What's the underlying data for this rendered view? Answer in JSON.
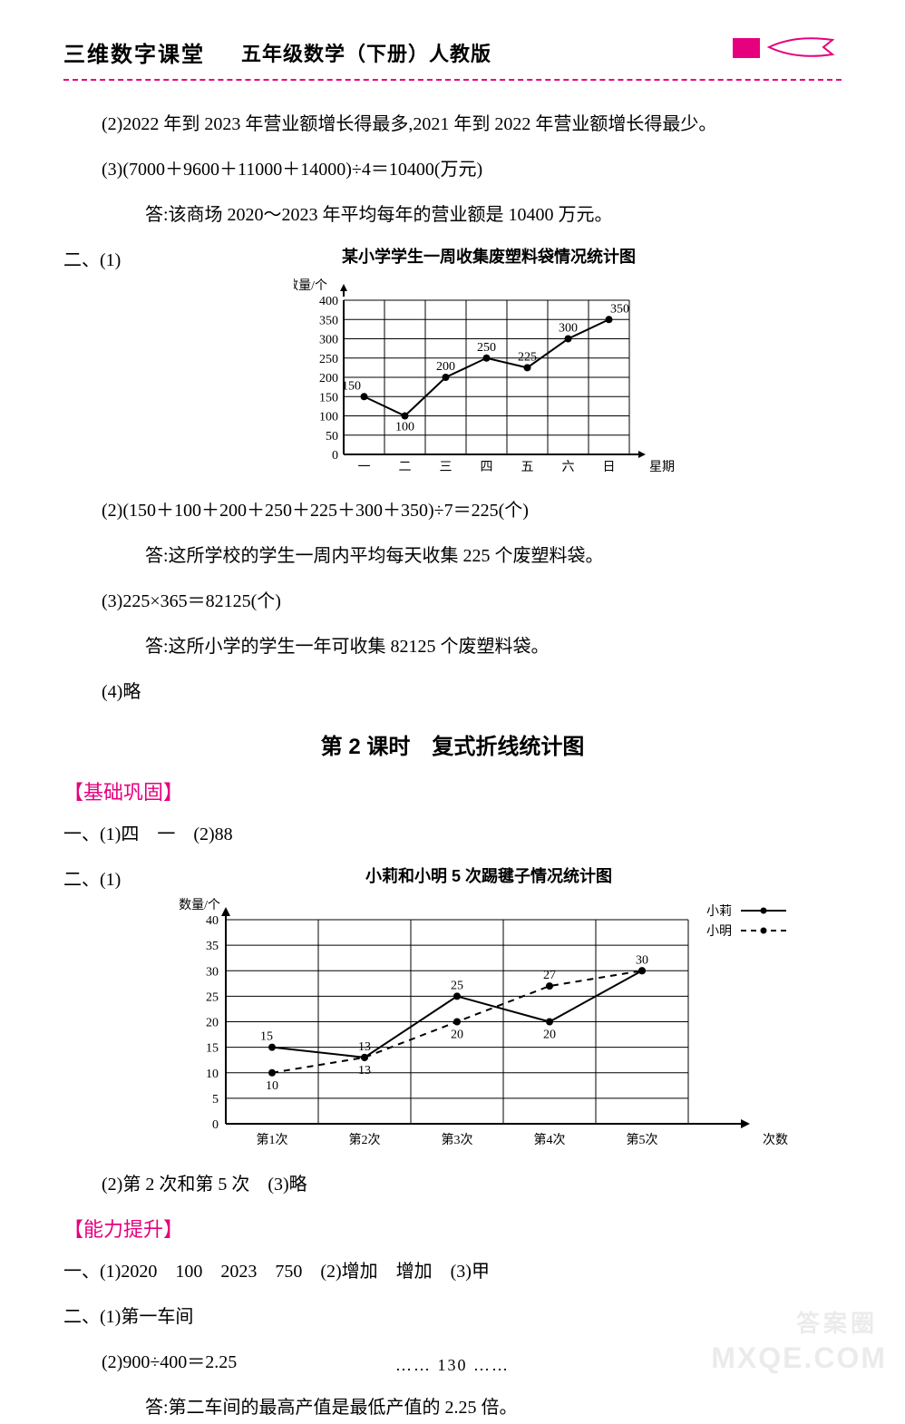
{
  "header": {
    "brand": "三维数字课堂",
    "title": "五年级数学（下册）人教版"
  },
  "ans_a2": "(2)2022 年到 2023 年营业额增长得最多,2021 年到 2022 年营业额增长得最少。",
  "ans_a3_calc": "(3)(7000＋9600＋11000＋14000)÷4＝10400(万元)",
  "ans_a3_text": "答:该商场 2020～2023 年平均每年的营业额是 10400 万元。",
  "q2_label": "二、(1)",
  "chart1": {
    "type": "line",
    "title": "某小学学生一周收集废塑料袋情况统计图",
    "y_axis_label": "数量/个",
    "x_axis_label": "星期",
    "ylim": [
      0,
      400
    ],
    "ytick_step": 50,
    "yticks": [
      0,
      50,
      100,
      150,
      200,
      250,
      300,
      350,
      400
    ],
    "categories": [
      "一",
      "二",
      "三",
      "四",
      "五",
      "六",
      "日"
    ],
    "values": [
      150,
      100,
      200,
      250,
      225,
      300,
      350
    ],
    "line_color": "#000000",
    "grid_color": "#000000",
    "background_color": "#ffffff",
    "label_fontsize": 14,
    "axis_fontsize": 14,
    "marker": "circle",
    "marker_size": 4
  },
  "ans_b2_calc": "(2)(150＋100＋200＋250＋225＋300＋350)÷7＝225(个)",
  "ans_b2_text": "答:这所学校的学生一周内平均每天收集 225 个废塑料袋。",
  "ans_b3_calc": "(3)225×365＝82125(个)",
  "ans_b3_text": "答:这所小学的学生一年可收集 82125 个废塑料袋。",
  "ans_b4": "(4)略",
  "section2_title": "第 2 课时　复式折线统计图",
  "tag_basic": "【基础巩固】",
  "basic_1": "一、(1)四　一　(2)88",
  "basic_2_label": "二、(1)",
  "chart2": {
    "type": "line-multi",
    "title": "小莉和小明 5 次踢毽子情况统计图",
    "y_axis_label": "数量/个",
    "x_axis_label": "次数",
    "ylim": [
      0,
      40
    ],
    "ytick_step": 5,
    "yticks": [
      0,
      5,
      10,
      15,
      20,
      25,
      30,
      35,
      40
    ],
    "categories": [
      "第1次",
      "第2次",
      "第3次",
      "第4次",
      "第5次"
    ],
    "series": [
      {
        "name": "小莉",
        "values": [
          15,
          13,
          25,
          20,
          30
        ],
        "style": "solid",
        "marker": "circle",
        "color": "#000000"
      },
      {
        "name": "小明",
        "values": [
          10,
          13,
          20,
          27,
          30
        ],
        "style": "dashed",
        "marker": "circle",
        "color": "#000000"
      }
    ],
    "legend": [
      {
        "label": "小莉",
        "style": "solid"
      },
      {
        "label": "小明",
        "style": "dashed"
      }
    ],
    "grid_color": "#000000",
    "background_color": "#ffffff",
    "label_fontsize": 14,
    "axis_fontsize": 14,
    "marker_size": 4
  },
  "basic_2_2": "(2)第 2 次和第 5 次　(3)略",
  "tag_ability": "【能力提升】",
  "ability_1": "一、(1)2020　100　2023　750　(2)增加　增加　(3)甲",
  "ability_2_1": "二、(1)第一车间",
  "ability_2_2_calc": "(2)900÷400＝2.25",
  "ability_2_2_text": "答:第二车间的最高产值是最低产值的 2.25 倍。",
  "footer": "…… 130 ……",
  "watermark": "MXQE.COM",
  "watermark2": "答案圈"
}
